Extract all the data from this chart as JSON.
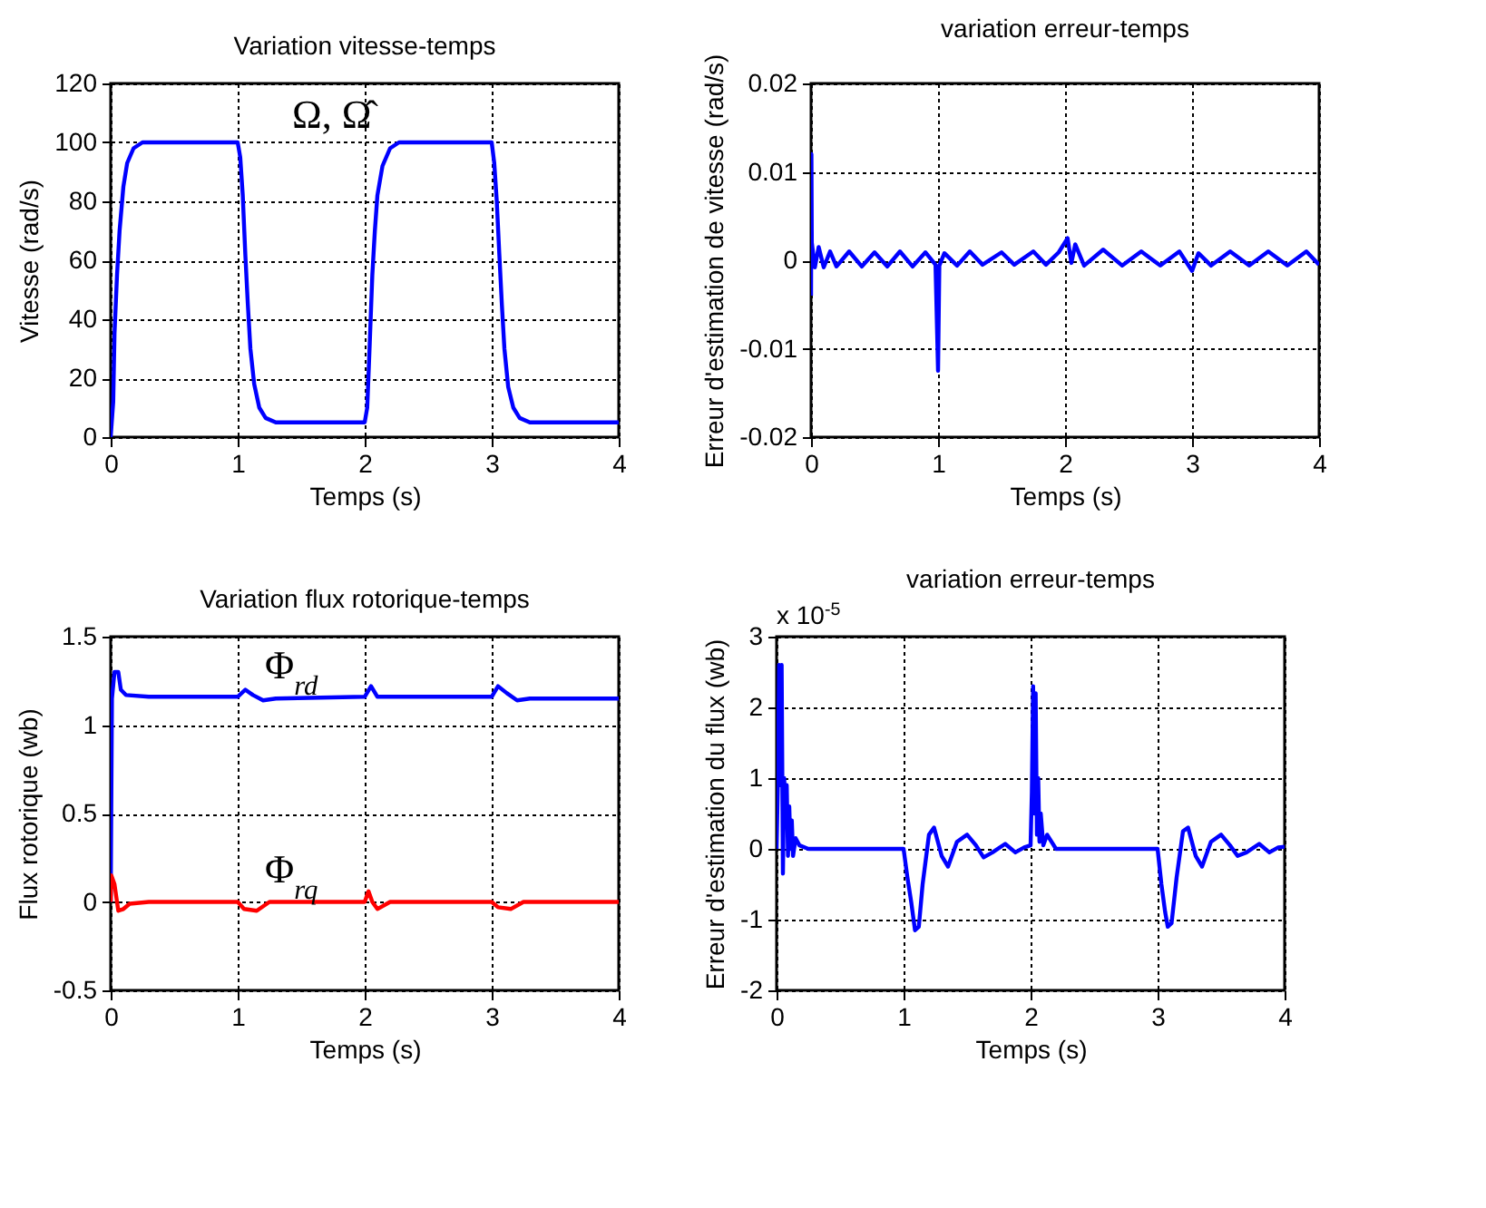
{
  "chart_data": [
    {
      "type": "line",
      "title": "Variation vitesse-temps",
      "xlabel": "Temps (s)",
      "ylabel": "Vitesse (rad/s)",
      "xlim": [
        0,
        4
      ],
      "xticks": [
        0,
        1,
        2,
        3,
        4
      ],
      "ylim": [
        0,
        120
      ],
      "yticks": [
        0,
        20,
        40,
        60,
        80,
        100,
        120
      ],
      "grid": true,
      "series": [
        {
          "name": "Ω, Ω̂",
          "color": "#0000ff",
          "x": [
            0,
            0.02,
            0.03,
            0.05,
            0.07,
            0.1,
            0.13,
            0.18,
            0.25,
            1.0,
            1.02,
            1.04,
            1.06,
            1.08,
            1.1,
            1.13,
            1.17,
            1.22,
            1.3,
            2.0,
            2.02,
            2.04,
            2.06,
            2.08,
            2.1,
            2.14,
            2.2,
            2.27,
            3.0,
            3.02,
            3.04,
            3.06,
            3.08,
            3.1,
            3.13,
            3.17,
            3.22,
            3.3,
            4
          ],
          "values": [
            0,
            12,
            35,
            55,
            70,
            85,
            93,
            98,
            100,
            100,
            95,
            82,
            62,
            45,
            30,
            18,
            10,
            6.5,
            5,
            5,
            10,
            32,
            55,
            70,
            82,
            92,
            98,
            100,
            100,
            93,
            80,
            62,
            45,
            30,
            17,
            10,
            6.5,
            5,
            5
          ]
        }
      ]
    },
    {
      "type": "line",
      "title": "variation erreur-temps",
      "xlabel": "Temps (s)",
      "ylabel": "Erreur d'estimation de vitesse (rad/s)",
      "xlim": [
        0,
        4
      ],
      "xticks": [
        0,
        1,
        2,
        3,
        4
      ],
      "ylim": [
        -0.02,
        0.02
      ],
      "yticks": [
        -0.02,
        -0.01,
        0,
        0.01,
        0.02
      ],
      "grid": true,
      "series": [
        {
          "color": "#0000ff",
          "x": [
            0,
            0.003,
            0.006,
            0.03,
            0.06,
            0.1,
            0.15,
            0.2,
            0.3,
            0.4,
            0.5,
            0.6,
            0.7,
            0.8,
            0.9,
            0.98,
            1.0,
            1.01,
            1.05,
            1.15,
            1.25,
            1.35,
            1.5,
            1.6,
            1.75,
            1.85,
            1.95,
            2.02,
            2.05,
            2.08,
            2.15,
            2.3,
            2.45,
            2.6,
            2.75,
            2.9,
            3.0,
            3.05,
            3.15,
            3.3,
            3.45,
            3.6,
            3.75,
            3.9,
            4
          ],
          "values": [
            -0.004,
            0.012,
            0.002,
            -0.0008,
            0.0015,
            -0.0008,
            0.001,
            -0.0007,
            0.001,
            -0.0007,
            0.0009,
            -0.0007,
            0.001,
            -0.0007,
            0.0009,
            -0.0005,
            -0.0125,
            -0.0006,
            0.0008,
            -0.0006,
            0.001,
            -0.0005,
            0.0009,
            -0.0005,
            0.001,
            -0.0005,
            0.0009,
            0.0025,
            -0.0003,
            0.0018,
            -0.0006,
            0.0012,
            -0.0006,
            0.001,
            -0.0006,
            0.001,
            -0.0012,
            0.0008,
            -0.0006,
            0.001,
            -0.0006,
            0.001,
            -0.0006,
            0.001,
            -0.0005
          ]
        }
      ]
    },
    {
      "type": "line",
      "title": "Variation flux rotorique-temps",
      "xlabel": "Temps (s)",
      "ylabel": "Flux rotorique (wb)",
      "xlim": [
        0,
        4
      ],
      "xticks": [
        0,
        1,
        2,
        3,
        4
      ],
      "ylim": [
        -0.5,
        1.5
      ],
      "yticks": [
        -0.5,
        0,
        0.5,
        1,
        1.5
      ],
      "grid": true,
      "series": [
        {
          "name": "Φ$_{rd}$",
          "color": "#0000ff",
          "x": [
            0,
            0.01,
            0.03,
            0.06,
            0.08,
            0.12,
            0.3,
            1.0,
            1.06,
            1.12,
            1.2,
            1.3,
            2.0,
            2.05,
            2.1,
            3.0,
            3.05,
            3.12,
            3.2,
            3.3,
            4
          ],
          "values": [
            0,
            1.15,
            1.3,
            1.3,
            1.2,
            1.17,
            1.16,
            1.16,
            1.2,
            1.17,
            1.14,
            1.15,
            1.16,
            1.22,
            1.16,
            1.16,
            1.22,
            1.18,
            1.14,
            1.15,
            1.15
          ]
        },
        {
          "name": "Φ$_{rq}$",
          "color": "#ff0000",
          "x": [
            0,
            0.005,
            0.03,
            0.06,
            0.1,
            0.15,
            0.3,
            1.0,
            1.05,
            1.15,
            1.25,
            2.0,
            2.03,
            2.06,
            2.1,
            2.2,
            3.0,
            3.05,
            3.15,
            3.25,
            4
          ],
          "values": [
            0,
            0.15,
            0.1,
            -0.05,
            -0.04,
            -0.01,
            0,
            0,
            -0.04,
            -0.05,
            0,
            0,
            0.06,
            0,
            -0.04,
            0,
            0,
            -0.03,
            -0.04,
            0,
            0
          ]
        }
      ]
    },
    {
      "type": "line",
      "title": "variation erreur-temps",
      "xlabel": "Temps (s)",
      "ylabel": "Erreur d'estimation du flux (wb)",
      "xlim": [
        0,
        4
      ],
      "xticks": [
        0,
        1,
        2,
        3,
        4
      ],
      "ylim": [
        -2,
        3
      ],
      "yticks": [
        -2,
        -1,
        0,
        1,
        2,
        3
      ],
      "grid": true,
      "annotations": [
        "x 10$^{-5}$"
      ],
      "series": [
        {
          "color": "#0000ff",
          "x": [
            0,
            0.01,
            0.02,
            0.03,
            0.04,
            0.05,
            0.06,
            0.07,
            0.08,
            0.09,
            0.1,
            0.11,
            0.12,
            0.13,
            0.15,
            0.18,
            0.25,
            1.0,
            1.03,
            1.06,
            1.09,
            1.12,
            1.15,
            1.2,
            1.24,
            1.3,
            1.35,
            1.42,
            1.5,
            1.57,
            1.63,
            1.7,
            1.8,
            1.88,
            1.95,
            2.0,
            2.01,
            2.02,
            2.03,
            2.04,
            2.05,
            2.06,
            2.07,
            2.08,
            2.1,
            2.13,
            2.2,
            3.0,
            3.03,
            3.06,
            3.08,
            3.11,
            3.15,
            3.2,
            3.24,
            3.3,
            3.35,
            3.42,
            3.5,
            3.57,
            3.63,
            3.7,
            3.8,
            3.88,
            3.95,
            4
          ],
          "values": [
            0,
            0.9,
            2.6,
            0.9,
            2.6,
            -0.35,
            1.0,
            0.5,
            0.9,
            -0.1,
            0.6,
            0,
            0.4,
            -0.1,
            0.15,
            0.05,
            0,
            0,
            -0.4,
            -0.75,
            -1.15,
            -1.1,
            -0.5,
            0.2,
            0.3,
            -0.1,
            -0.25,
            0.1,
            0.2,
            0.05,
            -0.12,
            -0.05,
            0.07,
            -0.05,
            0.02,
            0.05,
            0.8,
            2.3,
            0.5,
            2.2,
            0.2,
            1.0,
            0.1,
            0.5,
            0.05,
            0.2,
            0,
            0,
            -0.5,
            -0.9,
            -1.1,
            -1.05,
            -0.4,
            0.25,
            0.3,
            -0.1,
            -0.25,
            0.1,
            0.2,
            0.05,
            -0.1,
            -0.05,
            0.07,
            -0.05,
            0.02,
            0.03
          ]
        }
      ]
    }
  ]
}
